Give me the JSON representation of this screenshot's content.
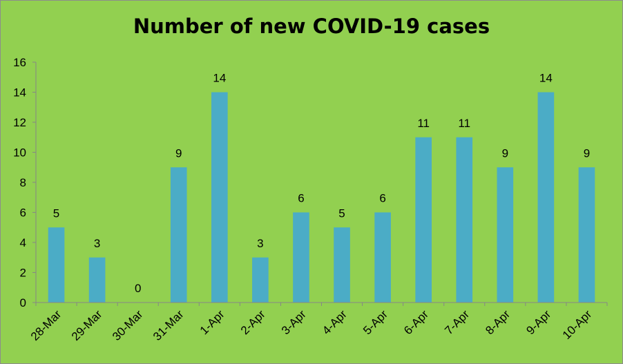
{
  "chart_data": {
    "type": "bar",
    "title": "Number of new COVID-19 cases",
    "categories": [
      "28-Mar",
      "29-Mar",
      "30-Mar",
      "31-Mar",
      "1-Apr",
      "2-Apr",
      "3-Apr",
      "4-Apr",
      "5-Apr",
      "6-Apr",
      "7-Apr",
      "8-Apr",
      "9-Apr",
      "10-Apr"
    ],
    "values": [
      5,
      3,
      0,
      9,
      14,
      3,
      6,
      5,
      6,
      11,
      11,
      9,
      14,
      9
    ],
    "xlabel": "",
    "ylabel": "",
    "ylim": [
      0,
      16
    ],
    "yticks": [
      0,
      2,
      4,
      6,
      8,
      10,
      12,
      14,
      16
    ],
    "data_labels": true,
    "grid": false,
    "legend": "none",
    "colors": {
      "background": "#92d050",
      "bar": "#4bacc6",
      "axis": "#868686"
    }
  }
}
